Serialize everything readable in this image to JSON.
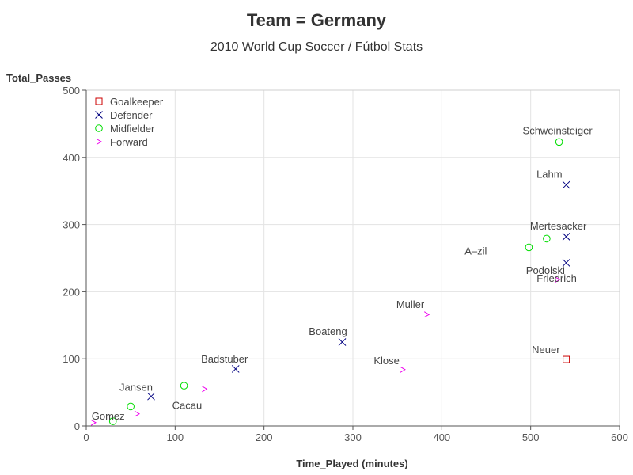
{
  "chart_data": {
    "type": "scatter",
    "title": "Team = Germany",
    "subtitle": "2010 World Cup Soccer / Fútbol Stats",
    "xlabel": "Time_Played (minutes)",
    "ylabel": "Total_Passes",
    "xlim": [
      0,
      600
    ],
    "ylim": [
      0,
      500
    ],
    "xticks": [
      "0",
      "100",
      "200",
      "300",
      "400",
      "500",
      "600"
    ],
    "yticks": [
      "0",
      "100",
      "200",
      "300",
      "400",
      "500"
    ],
    "grid": true,
    "legend_position": "top-left",
    "groups": [
      {
        "name": "Goalkeeper",
        "marker": "square",
        "color": "#cc0000"
      },
      {
        "name": "Defender",
        "marker": "x",
        "color": "#000080"
      },
      {
        "name": "Midfielder",
        "marker": "circle",
        "color": "#00dd00"
      },
      {
        "name": "Forward",
        "marker": "chevron",
        "color": "#ee00ee"
      }
    ],
    "points": [
      {
        "label": "Schweinsteiger",
        "x": 532,
        "y": 423,
        "group": "Midfielder"
      },
      {
        "label": "Lahm",
        "x": 540,
        "y": 359,
        "group": "Defender"
      },
      {
        "label": "Mertesacker",
        "x": 540,
        "y": 282,
        "group": "Defender"
      },
      {
        "label": "",
        "x": 518,
        "y": 279,
        "group": "Midfielder"
      },
      {
        "label": "A–zil",
        "x": 498,
        "y": 266,
        "group": "Midfielder"
      },
      {
        "label": "Friedrich",
        "x": 540,
        "y": 243,
        "group": "Defender"
      },
      {
        "label": "Podolski",
        "x": 530,
        "y": 218,
        "group": "Forward"
      },
      {
        "label": "Muller",
        "x": 383,
        "y": 166,
        "group": "Forward"
      },
      {
        "label": "Boateng",
        "x": 288,
        "y": 125,
        "group": "Defender"
      },
      {
        "label": "Neuer",
        "x": 540,
        "y": 99,
        "group": "Goalkeeper"
      },
      {
        "label": "Klose",
        "x": 356,
        "y": 84,
        "group": "Forward"
      },
      {
        "label": "Badstuber",
        "x": 168,
        "y": 85,
        "group": "Defender"
      },
      {
        "label": "",
        "x": 110,
        "y": 60,
        "group": "Midfielder"
      },
      {
        "label": "Cacau",
        "x": 133,
        "y": 55,
        "group": "Forward"
      },
      {
        "label": "Jansen",
        "x": 73,
        "y": 44,
        "group": "Defender"
      },
      {
        "label": "",
        "x": 50,
        "y": 29,
        "group": "Midfielder"
      },
      {
        "label": "",
        "x": 57,
        "y": 18,
        "group": "Forward"
      },
      {
        "label": "Gomez",
        "x": 30,
        "y": 7,
        "group": "Midfielder"
      },
      {
        "label": "",
        "x": 8,
        "y": 5,
        "group": "Forward"
      }
    ]
  }
}
